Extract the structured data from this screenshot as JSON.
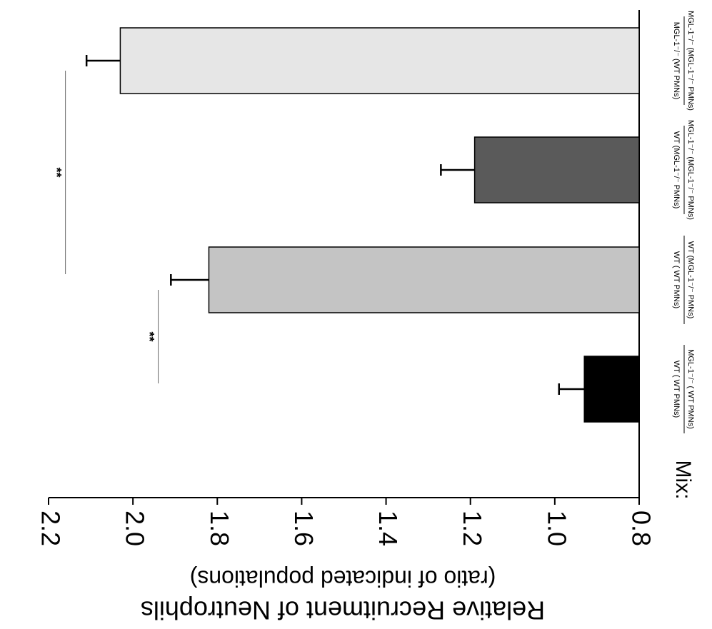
{
  "chart_data": {
    "type": "bar",
    "orientation": "rotated-180-and-90 (figure is rotated; bars extend leftward from baseline)",
    "ylabel_line1": "Relative Recruitment of Neutrophils",
    "ylabel_line2": "(ratio of indicated populations)",
    "ylim": [
      0.8,
      2.2
    ],
    "yticks": [
      "0.8",
      "1.0",
      "1.2",
      "1.4",
      "1.6",
      "1.8",
      "2.0",
      "2.2"
    ],
    "ytick_values": [
      0.8,
      1.0,
      1.2,
      1.4,
      1.6,
      1.8,
      2.0,
      2.2
    ],
    "mix_label": "Mix:",
    "categories": [
      {
        "num": "MGL-1⁻/⁻ ( WT PMNs)",
        "den": "WT ( WT PMNs)"
      },
      {
        "num": "WT (MGL-1⁻/⁻ PMNs)",
        "den": "WT ( WT PMNs)"
      },
      {
        "num": "MGL-1⁻/⁻ (MGL-1⁻/⁻ PMNs)",
        "den": "WT (MGL-1⁻/⁻ PMNs)"
      },
      {
        "num": "MGL-1⁻/⁻ (MGL-1⁻/⁻ PMNs)",
        "den": "MGL-1⁻/⁻ (WT PMNs)"
      }
    ],
    "values": [
      0.93,
      1.82,
      1.19,
      2.03
    ],
    "errors": [
      0.06,
      0.09,
      0.08,
      0.08
    ],
    "bar_colors": [
      "#000000",
      "#c4c4c4",
      "#5a5a5a",
      "#e6e6e6"
    ],
    "significance": [
      {
        "from": 0,
        "to": 1,
        "label": "**",
        "value": 1.94
      },
      {
        "from": 1,
        "to": 3,
        "label": "**",
        "value": 2.16
      }
    ]
  }
}
